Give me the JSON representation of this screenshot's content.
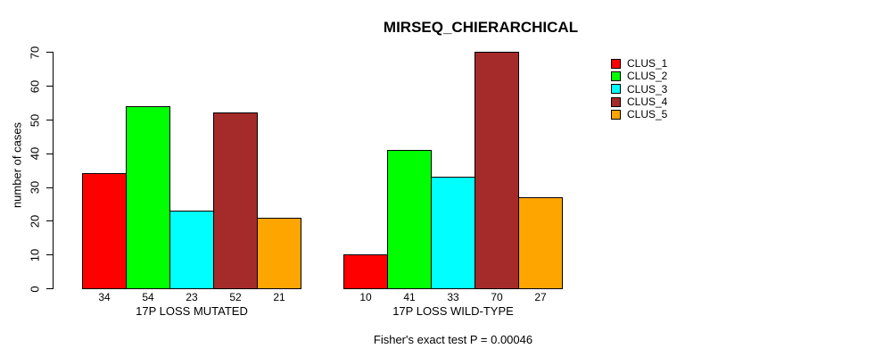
{
  "chart_data": {
    "type": "bar",
    "title": "MIRSEQ_CHIERARCHICAL",
    "ylabel": "number of cases",
    "xlabel": "",
    "ylim": [
      0,
      70
    ],
    "yticks": [
      0,
      10,
      20,
      30,
      40,
      50,
      60,
      70
    ],
    "grid": false,
    "legend_position": "right",
    "bar_value_labels": true,
    "categories": [
      "17P LOSS MUTATED",
      "17P LOSS WILD-TYPE"
    ],
    "series": [
      {
        "name": "CLUS_1",
        "color": "#FF0000",
        "values": [
          34,
          10
        ]
      },
      {
        "name": "CLUS_2",
        "color": "#00FF00",
        "values": [
          54,
          41
        ]
      },
      {
        "name": "CLUS_3",
        "color": "#00FFFF",
        "values": [
          23,
          33
        ]
      },
      {
        "name": "CLUS_4",
        "color": "#A52A2A",
        "values": [
          52,
          70
        ]
      },
      {
        "name": "CLUS_5",
        "color": "#FFA500",
        "values": [
          21,
          27
        ]
      }
    ],
    "footnote": "Fisher's exact test P = 0.00046",
    "colors": {
      "axis": "#000000",
      "text": "#000000",
      "background": "#FFFFFF"
    }
  }
}
